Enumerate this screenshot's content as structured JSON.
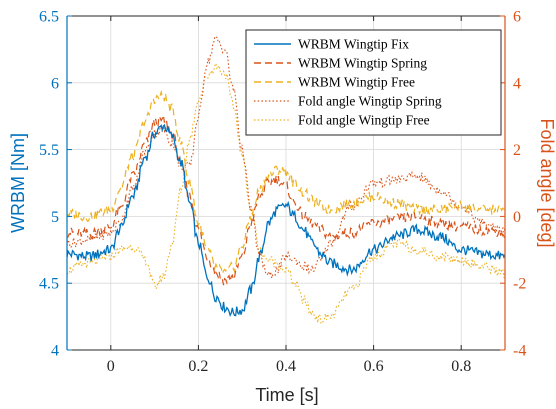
{
  "chart_data": {
    "type": "line",
    "xlabel": "Time [s]",
    "ylabel_left": "WRBM [Nm]",
    "ylabel_right": "Fold angle [deg]",
    "xlim": [
      -0.1,
      0.9
    ],
    "ylim_left": [
      4,
      6.5
    ],
    "ylim_right": [
      -4,
      6
    ],
    "x_ticks": [
      0,
      0.2,
      0.4,
      0.6,
      0.8
    ],
    "x_tick_labels": [
      "0",
      "0.2",
      "0.4",
      "0.6",
      "0.8"
    ],
    "y_ticks_left": [
      4,
      4.5,
      5,
      5.5,
      6,
      6.5
    ],
    "y_tick_labels_left": [
      "4",
      "4.5",
      "5",
      "5.5",
      "6",
      "6.5"
    ],
    "y_ticks_right": [
      -4,
      -2,
      0,
      2,
      4,
      6
    ],
    "y_tick_labels_right": [
      "-4",
      "-2",
      "0",
      "2",
      "4",
      "6"
    ],
    "legend_position": "top-right",
    "colors": {
      "left_axis": "#0072BD",
      "right_axis": "#D95319",
      "free": "#EDB120"
    },
    "series": [
      {
        "name": "WRBM Wingtip Fix",
        "axis": "left",
        "style": "solid",
        "color": "#0072BD",
        "x": [
          -0.1,
          -0.05,
          0,
          0.02,
          0.05,
          0.08,
          0.1,
          0.12,
          0.14,
          0.16,
          0.18,
          0.2,
          0.22,
          0.24,
          0.26,
          0.28,
          0.3,
          0.32,
          0.34,
          0.36,
          0.38,
          0.4,
          0.42,
          0.44,
          0.46,
          0.48,
          0.5,
          0.55,
          0.6,
          0.65,
          0.7,
          0.75,
          0.8,
          0.85,
          0.9
        ],
        "y": [
          4.72,
          4.7,
          4.75,
          4.9,
          5.15,
          5.45,
          5.62,
          5.68,
          5.6,
          5.4,
          5.1,
          4.8,
          4.55,
          4.4,
          4.32,
          4.28,
          4.3,
          4.45,
          4.7,
          4.95,
          5.05,
          5.08,
          5.0,
          4.9,
          4.8,
          4.72,
          4.65,
          4.6,
          4.75,
          4.85,
          4.9,
          4.85,
          4.75,
          4.72,
          4.7
        ]
      },
      {
        "name": "WRBM Wingtip Spring",
        "axis": "left",
        "style": "dashed",
        "color": "#D95319",
        "x": [
          -0.1,
          -0.05,
          0,
          0.02,
          0.05,
          0.08,
          0.1,
          0.12,
          0.14,
          0.16,
          0.18,
          0.2,
          0.22,
          0.24,
          0.26,
          0.28,
          0.3,
          0.32,
          0.34,
          0.36,
          0.38,
          0.4,
          0.42,
          0.44,
          0.46,
          0.48,
          0.5,
          0.55,
          0.6,
          0.65,
          0.7,
          0.75,
          0.8,
          0.85,
          0.9
        ],
        "y": [
          4.88,
          4.87,
          4.92,
          5.05,
          5.3,
          5.55,
          5.7,
          5.72,
          5.62,
          5.4,
          5.15,
          4.9,
          4.7,
          4.58,
          4.52,
          4.55,
          4.7,
          4.95,
          5.15,
          5.25,
          5.28,
          5.22,
          5.1,
          5.0,
          4.95,
          4.9,
          4.85,
          4.88,
          4.95,
          4.98,
          5.0,
          4.95,
          4.92,
          4.9,
          4.88
        ]
      },
      {
        "name": "WRBM Wingtip Free",
        "axis": "left",
        "style": "dashed",
        "color": "#EDB120",
        "x": [
          -0.1,
          -0.05,
          0,
          0.02,
          0.05,
          0.08,
          0.1,
          0.12,
          0.14,
          0.16,
          0.18,
          0.2,
          0.22,
          0.24,
          0.26,
          0.28,
          0.3,
          0.32,
          0.34,
          0.36,
          0.38,
          0.4,
          0.42,
          0.44,
          0.46,
          0.48,
          0.5,
          0.55,
          0.6,
          0.65,
          0.7,
          0.75,
          0.8,
          0.85,
          0.9
        ],
        "y": [
          5.02,
          5.0,
          5.05,
          5.2,
          5.45,
          5.72,
          5.88,
          5.9,
          5.8,
          5.55,
          5.25,
          4.95,
          4.75,
          4.62,
          4.58,
          4.62,
          4.78,
          5.0,
          5.2,
          5.3,
          5.35,
          5.33,
          5.25,
          5.18,
          5.12,
          5.08,
          5.05,
          5.1,
          5.15,
          5.1,
          5.05,
          5.05,
          5.08,
          5.05,
          5.05
        ]
      },
      {
        "name": "Fold angle Wingtip Spring",
        "axis": "right",
        "style": "dotted",
        "color": "#D95319",
        "x": [
          -0.1,
          -0.05,
          0,
          0.02,
          0.05,
          0.08,
          0.1,
          0.12,
          0.14,
          0.16,
          0.18,
          0.2,
          0.22,
          0.24,
          0.26,
          0.28,
          0.3,
          0.32,
          0.34,
          0.36,
          0.38,
          0.4,
          0.42,
          0.44,
          0.46,
          0.48,
          0.5,
          0.55,
          0.6,
          0.65,
          0.7,
          0.75,
          0.8,
          0.85,
          0.9
        ],
        "y": [
          -0.8,
          -0.7,
          -0.5,
          -0.2,
          0.8,
          2.0,
          2.5,
          2.6,
          2.2,
          1.5,
          1.5,
          3.0,
          4.6,
          5.3,
          5.0,
          3.8,
          2.0,
          0.2,
          -1.2,
          -1.8,
          -1.6,
          -1.2,
          -1.3,
          -1.5,
          -1.6,
          -1.3,
          -0.8,
          0.3,
          1.0,
          1.1,
          1.2,
          0.8,
          0.3,
          -0.2,
          -0.5
        ]
      },
      {
        "name": "Fold angle Wingtip Free",
        "axis": "right",
        "style": "dotted",
        "color": "#EDB120",
        "x": [
          -0.1,
          -0.05,
          0,
          0.02,
          0.05,
          0.08,
          0.1,
          0.12,
          0.14,
          0.16,
          0.18,
          0.2,
          0.22,
          0.24,
          0.26,
          0.28,
          0.3,
          0.32,
          0.34,
          0.36,
          0.38,
          0.4,
          0.42,
          0.44,
          0.46,
          0.48,
          0.5,
          0.55,
          0.6,
          0.65,
          0.7,
          0.75,
          0.8,
          0.85,
          0.9
        ],
        "y": [
          -1.6,
          -1.4,
          -1.2,
          -1.0,
          -0.9,
          -1.3,
          -2.1,
          -1.8,
          -0.8,
          0.8,
          2.3,
          3.5,
          4.2,
          4.5,
          4.3,
          3.3,
          1.8,
          0.2,
          -1.0,
          -1.3,
          -1.4,
          -1.6,
          -2.0,
          -2.5,
          -2.9,
          -3.1,
          -3.0,
          -2.2,
          -1.2,
          -0.8,
          -1.0,
          -1.2,
          -1.3,
          -1.5,
          -1.7
        ]
      }
    ]
  }
}
